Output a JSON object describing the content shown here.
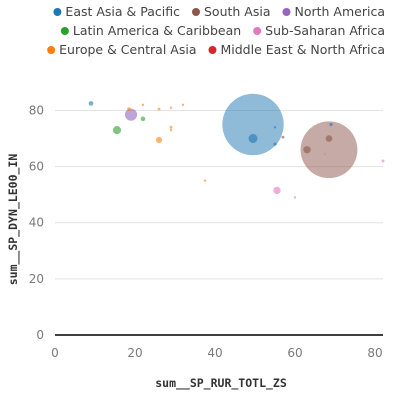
{
  "chart_data": {
    "type": "scatter",
    "subtype": "bubble",
    "xlabel": "sum__SP_RUR_TOTL_ZS",
    "ylabel": "sum__SP_DYN_LE00_IN",
    "xlim": [
      0,
      82
    ],
    "ylim": [
      0,
      88
    ],
    "x_ticks": [
      "0",
      "20",
      "40",
      "60",
      "80"
    ],
    "y_ticks": [
      "0",
      "20",
      "40",
      "60",
      "80"
    ],
    "grid": "horizontal",
    "legend_position": "top",
    "series": [
      {
        "name": "East Asia & Pacific",
        "color": "#1f77b4",
        "points": [
          {
            "x": 9,
            "y": 82.5,
            "size": 8
          },
          {
            "x": 49.5,
            "y": 75,
            "size": 1400
          },
          {
            "x": 49.5,
            "y": 70,
            "size": 30
          },
          {
            "x": 55,
            "y": 68,
            "size": 4
          },
          {
            "x": 55,
            "y": 74,
            "size": 2
          },
          {
            "x": 69,
            "y": 75,
            "size": 4
          }
        ]
      },
      {
        "name": "South Asia",
        "color": "#8c564b",
        "points": [
          {
            "x": 68.5,
            "y": 66,
            "size": 1200
          },
          {
            "x": 68.5,
            "y": 70,
            "size": 16
          },
          {
            "x": 63,
            "y": 66,
            "size": 20
          },
          {
            "x": 57,
            "y": 70.5,
            "size": 3
          }
        ]
      },
      {
        "name": "North America",
        "color": "#9467bd",
        "points": [
          {
            "x": 19,
            "y": 78.5,
            "size": 55
          }
        ]
      },
      {
        "name": "Latin America & Caribbean",
        "color": "#2ca02c",
        "points": [
          {
            "x": 15.5,
            "y": 73,
            "size": 25
          },
          {
            "x": 22,
            "y": 77,
            "size": 8
          }
        ]
      },
      {
        "name": "Sub-Saharan Africa",
        "color": "#e377c2",
        "points": [
          {
            "x": 55.5,
            "y": 51.5,
            "size": 20
          },
          {
            "x": 60,
            "y": 49,
            "size": 2
          },
          {
            "x": 67.5,
            "y": 64.5,
            "size": 2
          },
          {
            "x": 82,
            "y": 62,
            "size": 3
          }
        ]
      },
      {
        "name": "Europe & Central Asia",
        "color": "#ff7f0e",
        "points": [
          {
            "x": 18.5,
            "y": 80.5,
            "size": 5
          },
          {
            "x": 22,
            "y": 82,
            "size": 2
          },
          {
            "x": 26,
            "y": 80.5,
            "size": 3
          },
          {
            "x": 29,
            "y": 81,
            "size": 2
          },
          {
            "x": 32,
            "y": 82,
            "size": 1
          },
          {
            "x": 26,
            "y": 69.5,
            "size": 14
          },
          {
            "x": 29,
            "y": 74,
            "size": 3
          },
          {
            "x": 29,
            "y": 73,
            "size": 2
          },
          {
            "x": 37.5,
            "y": 55,
            "size": 1
          }
        ]
      },
      {
        "name": "Middle East & North Africa",
        "color": "#d62728",
        "points": []
      }
    ]
  },
  "legend": [
    {
      "label": "East Asia & Pacific",
      "color": "#1f77b4"
    },
    {
      "label": "South Asia",
      "color": "#8c564b"
    },
    {
      "label": "North America",
      "color": "#9467bd"
    },
    {
      "label": "Latin America & Caribbean",
      "color": "#2ca02c"
    },
    {
      "label": "Sub-Saharan Africa",
      "color": "#e377c2"
    },
    {
      "label": "Europe & Central Asia",
      "color": "#ff7f0e"
    },
    {
      "label": "Middle East & North Africa",
      "color": "#d62728"
    }
  ]
}
